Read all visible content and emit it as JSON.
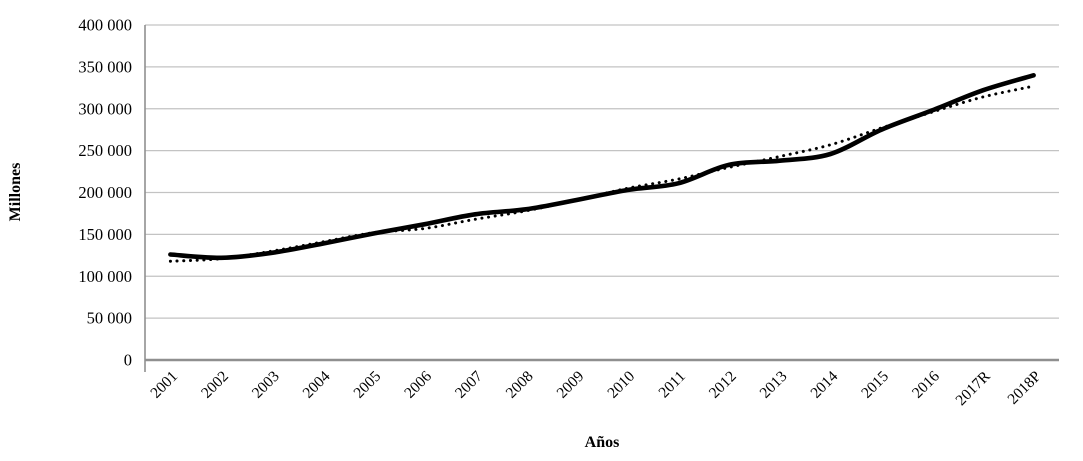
{
  "chart_data": {
    "type": "line",
    "title": "",
    "xlabel": "Años",
    "ylabel": "Millones",
    "categories": [
      "2001",
      "2002",
      "2003",
      "2004",
      "2005",
      "2006",
      "2007",
      "2008",
      "2009",
      "2010",
      "2011",
      "2012",
      "2013",
      "2014",
      "2015",
      "2016",
      "2017R",
      "2018P"
    ],
    "series": [
      {
        "name": "solid_line",
        "style": "solid",
        "color": "#000000",
        "values": [
          126000,
          122000,
          128000,
          139000,
          151000,
          162000,
          174000,
          180000,
          191000,
          203000,
          211000,
          233000,
          238000,
          246000,
          275000,
          298000,
          322000,
          340000
        ]
      },
      {
        "name": "dotted_line",
        "style": "dotted",
        "color": "#000000",
        "values": [
          118000,
          121000,
          130000,
          141000,
          152000,
          157000,
          168000,
          178000,
          191000,
          205000,
          216000,
          230000,
          243000,
          257000,
          277000,
          296000,
          314000,
          327000
        ]
      }
    ],
    "ylim": [
      0,
      400000
    ],
    "ytick_step": 50000,
    "ytick_labels": [
      "0",
      "50 000",
      "100 000",
      "150 000",
      "200 000",
      "250 000",
      "300 000",
      "350 000",
      "400 000"
    ],
    "grid": "horizontal",
    "legend": "none"
  },
  "colors": {
    "line": "#000000",
    "gridline": "#c3c3c3",
    "axis": "#8f8f8f",
    "background": "#ffffff",
    "text": "#000000"
  }
}
